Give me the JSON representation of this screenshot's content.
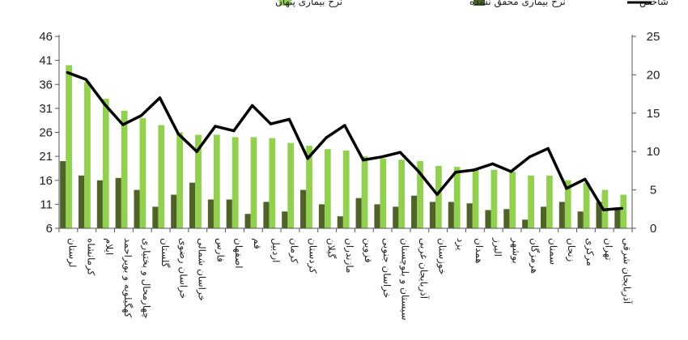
{
  "chart_data": {
    "type": "bar",
    "categories": [
      "لرستان",
      "کرمانشاه",
      "ایلام",
      "کهگیلویه و بویراحمد",
      "چهارمحال و بختیاری",
      "گلستان",
      "خراسان رضوی",
      "خراسان شمالی",
      "فارس",
      "اصفهان",
      "قم",
      "اردبیل",
      "کرمان",
      "کردستان",
      "گیلان",
      "مازندران",
      "قزوین",
      "خراسان جنوبی",
      "سیستان و بلوچستان",
      "آذربایجان غربی",
      "خوزستان",
      "یزد",
      "همدان",
      "البرز",
      "بوشهر",
      "هرمزگان",
      "سمنان",
      "زنجان",
      "مرکزی",
      "تهران",
      "آذربایجان شرقی"
    ],
    "series": [
      {
        "name": "نرخ بیماری پنهان",
        "axis": "left",
        "color": "#92d050",
        "values": [
          40,
          36.5,
          33,
          30.5,
          29,
          27.5,
          26,
          25.5,
          25.5,
          25,
          25,
          24.8,
          23.8,
          23.2,
          22.5,
          22.2,
          21,
          20.5,
          20.3,
          20,
          19,
          18.8,
          18.5,
          18.2,
          17.8,
          17,
          17,
          16,
          15.5,
          14,
          13
        ]
      },
      {
        "name": "نرخ بیماری محقق نشده",
        "axis": "left",
        "color": "#4f6228",
        "values": [
          20,
          17,
          16,
          16.5,
          14,
          10.5,
          13,
          15.5,
          12,
          12,
          9,
          11.5,
          9.5,
          14,
          11,
          8.5,
          12.3,
          11,
          10.5,
          12.8,
          11.5,
          11.5,
          11.2,
          9.8,
          10,
          7.8,
          10.5,
          11.5,
          9.5,
          11.5,
          9.8
        ]
      },
      {
        "name": "شاخص",
        "axis": "right",
        "type": "line",
        "color": "#000000",
        "values": [
          20.3,
          19.4,
          16.2,
          13.5,
          14.7,
          17,
          12.3,
          10,
          13.3,
          12.7,
          16,
          13.6,
          14.2,
          9.1,
          11.8,
          13.4,
          8.9,
          9.3,
          9.9,
          7.4,
          4.4,
          7.3,
          7.6,
          8.4,
          7.4,
          9.3,
          10.4,
          5.2,
          6.4,
          2.4,
          2.6
        ]
      }
    ],
    "y_left": {
      "ticks": [
        6,
        11,
        16,
        21,
        26,
        31,
        36,
        41,
        46
      ],
      "ylim": [
        6,
        46
      ]
    },
    "y_right": {
      "ticks": [
        0,
        5,
        10,
        15,
        20,
        25
      ],
      "ylim": [
        0,
        25
      ]
    },
    "grid": false,
    "legend_position": "top"
  }
}
